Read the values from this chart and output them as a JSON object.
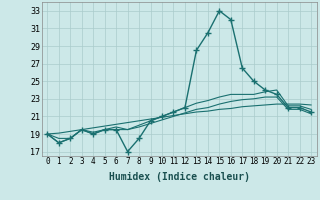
{
  "title": "",
  "xlabel": "Humidex (Indice chaleur)",
  "ylabel": "",
  "bg_color": "#cce8e8",
  "grid_color": "#aacccc",
  "line_color": "#1a7070",
  "xlim": [
    -0.5,
    23.5
  ],
  "ylim": [
    16.5,
    34.0
  ],
  "yticks": [
    17,
    19,
    21,
    23,
    25,
    27,
    29,
    31,
    33
  ],
  "xticks": [
    0,
    1,
    2,
    3,
    4,
    5,
    6,
    7,
    8,
    9,
    10,
    11,
    12,
    13,
    14,
    15,
    16,
    17,
    18,
    19,
    20,
    21,
    22,
    23
  ],
  "main_y": [
    19.0,
    18.0,
    18.5,
    19.5,
    19.0,
    19.5,
    19.5,
    17.0,
    18.5,
    20.5,
    21.0,
    21.5,
    22.0,
    28.5,
    30.5,
    33.0,
    32.0,
    26.5,
    25.0,
    24.0,
    23.5,
    22.0,
    22.0,
    21.5
  ],
  "lower1_y": [
    19.0,
    18.5,
    18.5,
    19.5,
    19.2,
    19.5,
    19.8,
    19.5,
    20.0,
    20.5,
    21.0,
    21.5,
    22.0,
    22.5,
    22.8,
    23.2,
    23.5,
    23.5,
    23.5,
    23.8,
    24.0,
    22.2,
    22.2,
    21.8
  ],
  "lower2_y": [
    19.0,
    18.0,
    18.5,
    19.5,
    19.0,
    19.5,
    19.5,
    19.5,
    19.8,
    20.2,
    20.6,
    21.0,
    21.4,
    21.8,
    22.0,
    22.4,
    22.7,
    22.9,
    23.0,
    23.2,
    23.2,
    21.8,
    21.8,
    21.3
  ],
  "trend1_y": [
    19.0,
    19.1,
    19.3,
    19.5,
    19.7,
    19.9,
    20.1,
    20.3,
    20.5,
    20.7,
    20.9,
    21.1,
    21.3,
    21.5,
    21.6,
    21.8,
    21.9,
    22.1,
    22.2,
    22.3,
    22.4,
    22.4,
    22.4,
    22.3
  ]
}
